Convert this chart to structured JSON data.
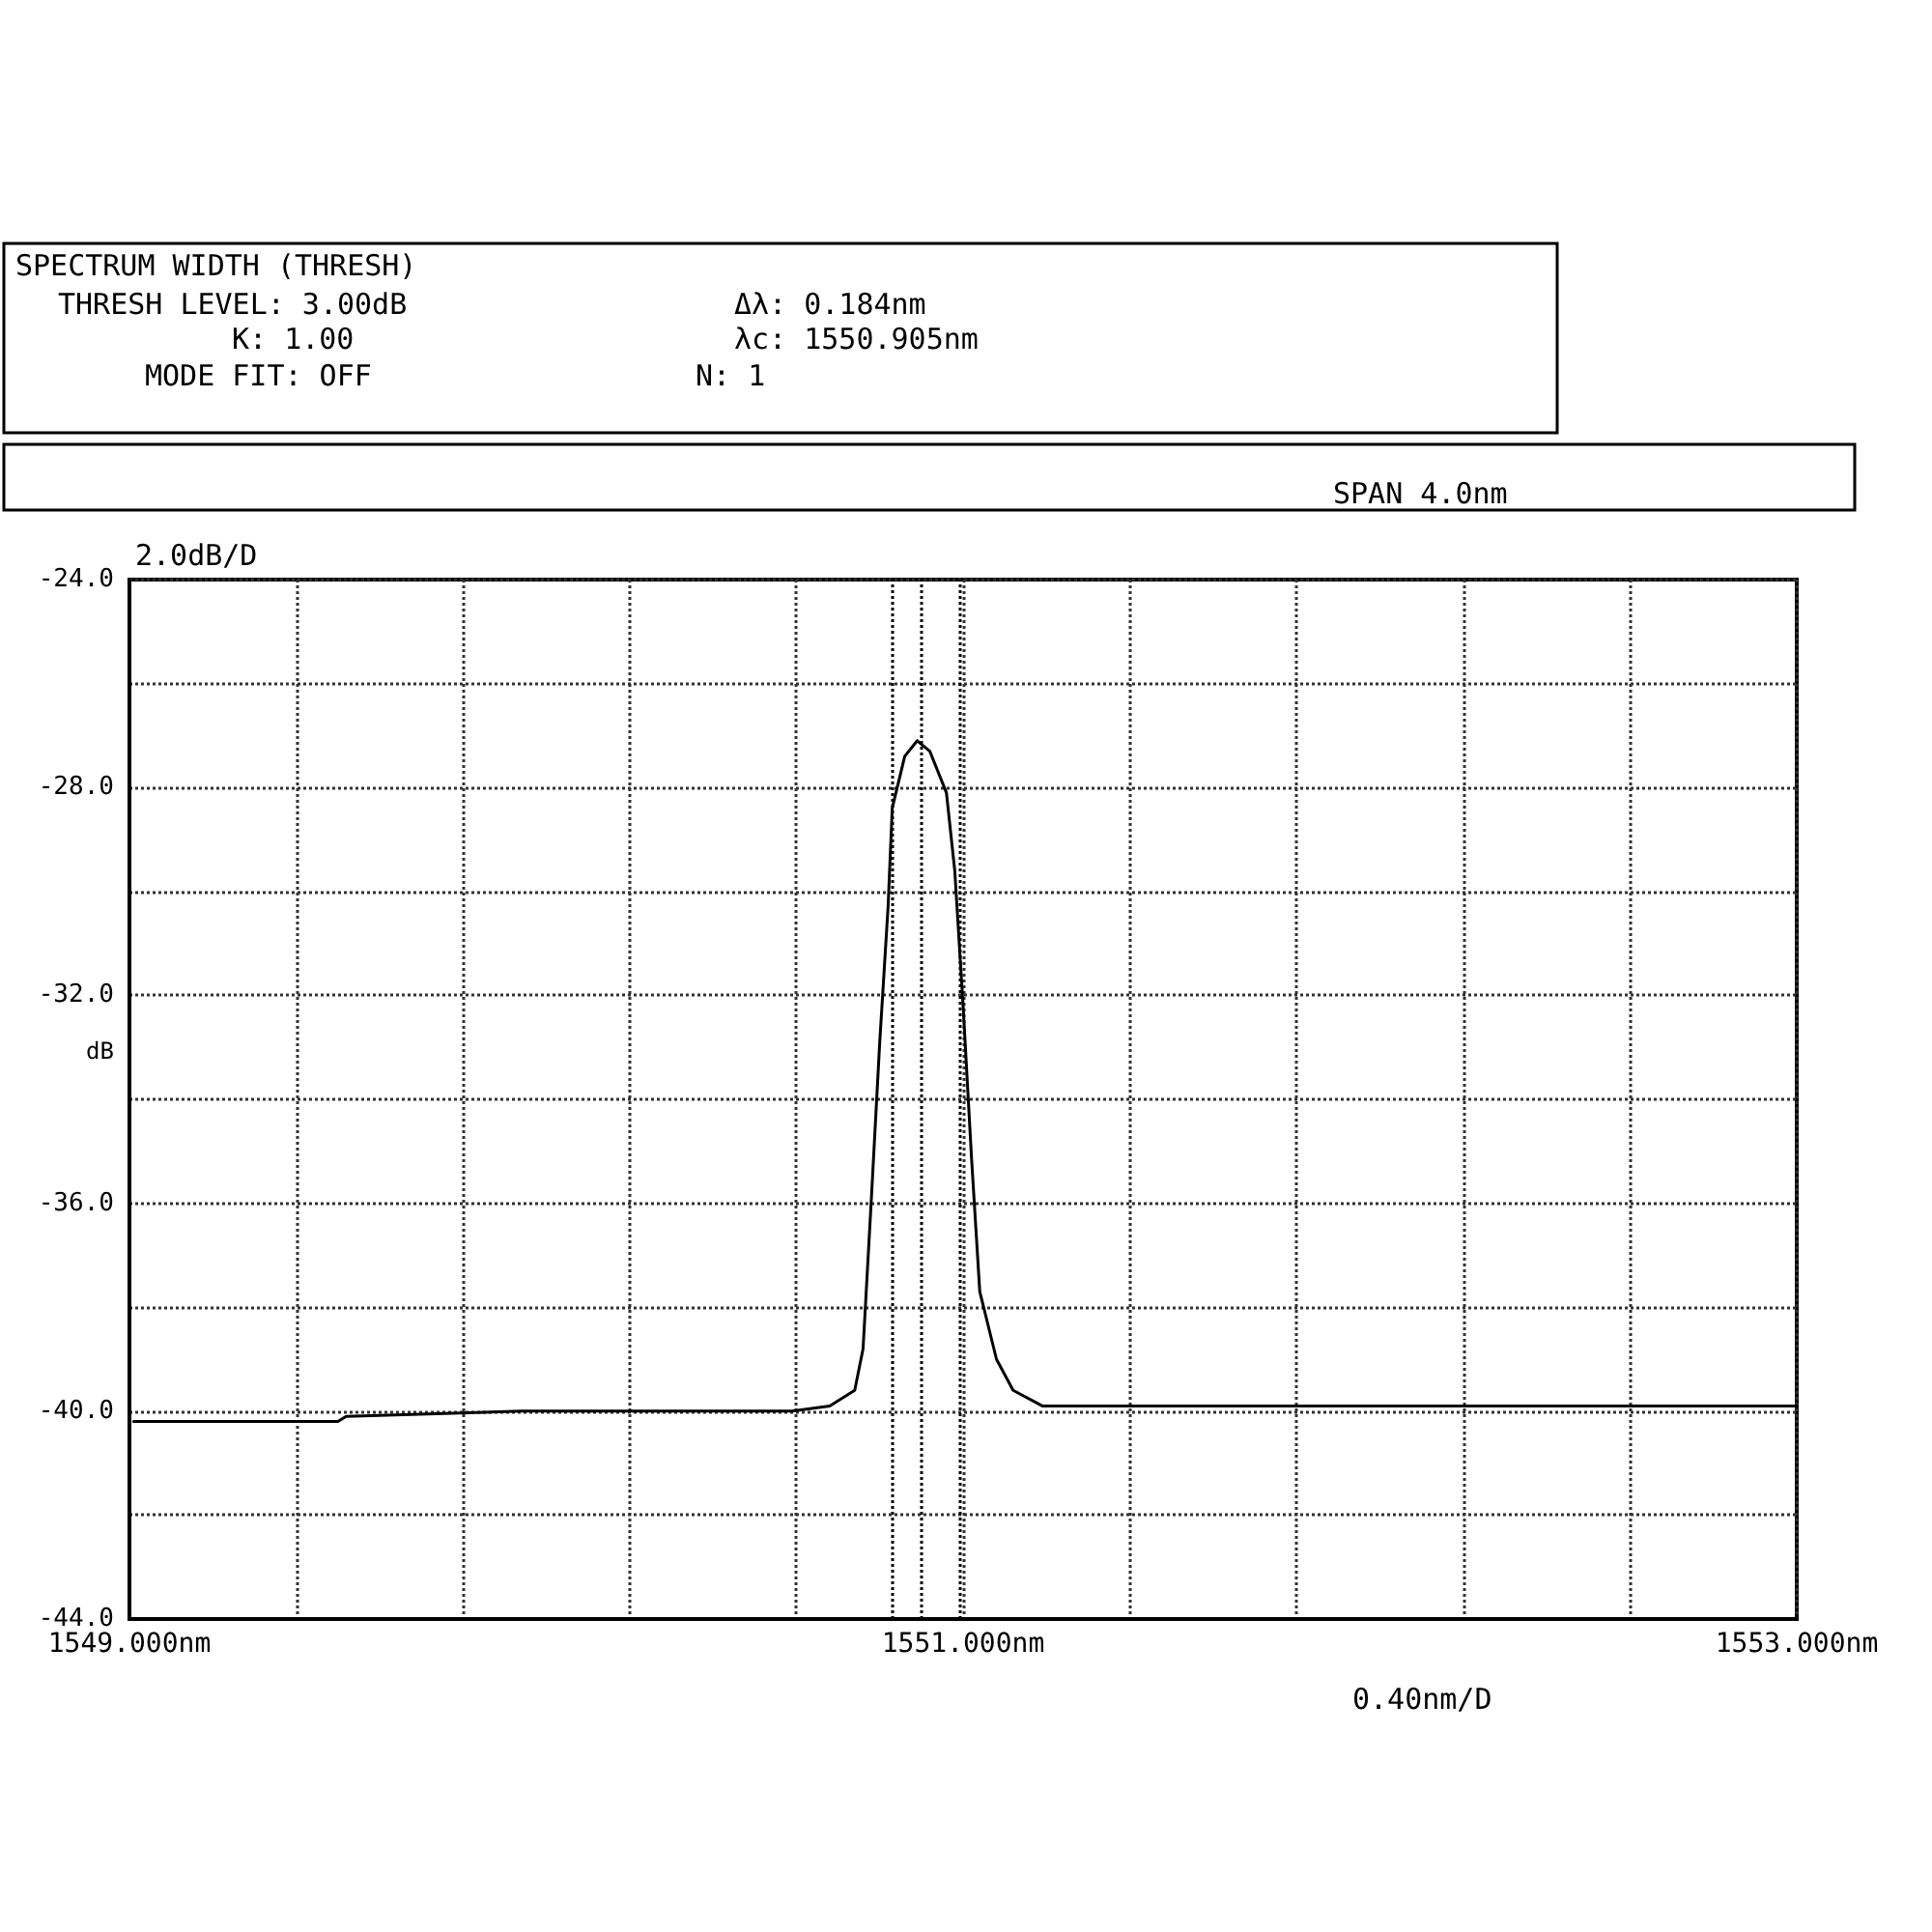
{
  "chart_data": {
    "type": "line",
    "ylabel": "dB",
    "x": [
      1549.01,
      1549.25,
      1549.5,
      1549.52,
      1549.94,
      1550.08,
      1550.59,
      1550.68,
      1550.74,
      1550.76,
      1550.78,
      1550.8,
      1550.82,
      1550.83,
      1550.86,
      1550.89,
      1550.92,
      1550.96,
      1550.98,
      1551.0,
      1551.02,
      1551.04,
      1551.08,
      1551.12,
      1551.19,
      1551.47,
      1551.93,
      1552.4,
      1553.0
    ],
    "series": [
      {
        "color": "#000000",
        "values": [
          -40.2,
          -40.2,
          -40.2,
          -40.1,
          -40.0,
          -40.0,
          -40.0,
          -39.9,
          -39.6,
          -38.8,
          -35.9,
          -32.9,
          -30.3,
          -28.4,
          -27.4,
          -27.1,
          -27.3,
          -28.1,
          -29.6,
          -32.2,
          -35.1,
          -37.7,
          -39.0,
          -39.6,
          -39.9,
          -39.9,
          -39.9,
          -39.9,
          -39.9
        ]
      }
    ],
    "xlim": [
      1549,
      1553
    ],
    "xticks": [
      {
        "value": 1549,
        "label": "1549.000nm"
      },
      {
        "value": 1549.4,
        "label": null
      },
      {
        "value": 1549.8,
        "label": null
      },
      {
        "value": 1550.2,
        "label": null
      },
      {
        "value": 1550.6,
        "label": null
      },
      {
        "value": 1551,
        "label": "1551.000nm"
      },
      {
        "value": 1551.4,
        "label": null
      },
      {
        "value": 1551.8,
        "label": null
      },
      {
        "value": 1552.2,
        "label": null
      },
      {
        "value": 1552.6,
        "label": null
      },
      {
        "value": 1553,
        "label": "1553.000nm"
      }
    ],
    "ylim": [
      -44,
      -24
    ],
    "yticks": [
      {
        "value": -44,
        "label": "-44.0"
      },
      {
        "value": -42,
        "label": null
      },
      {
        "value": -40,
        "label": "-40.0"
      },
      {
        "value": -38,
        "label": null
      },
      {
        "value": -36,
        "label": "-36.0"
      },
      {
        "value": -34,
        "label": null
      },
      {
        "value": -32,
        "label": "-32.0"
      },
      {
        "value": -30,
        "label": null
      },
      {
        "value": -28,
        "label": "-28.0"
      },
      {
        "value": -26,
        "label": null
      },
      {
        "value": -24,
        "label": "-24.0"
      }
    ],
    "ref_lines": [
      {
        "axis": "x",
        "value": 1550.83,
        "line_style": "dotted",
        "color": "#000000"
      },
      {
        "axis": "x",
        "value": 1550.905,
        "line_style": "dotted",
        "color": "#000000"
      },
      {
        "axis": "x",
        "value": 1550.99,
        "line_style": "dotted",
        "color": "#000000"
      }
    ],
    "annotations": [
      "SPECTRUM WIDTH (THRESH)",
      "THRESH LEVEL: 3.00dB",
      "K: 1.00",
      "MODE FIT: OFF",
      "Δλ: 0.184nm",
      "λc: 1550.905nm",
      "N: 1",
      "SPAN 4.0nm",
      "2.0dB/D",
      "0.40nm/D"
    ],
    "grid": true,
    "line_style": "solid",
    "marker": "none"
  }
}
